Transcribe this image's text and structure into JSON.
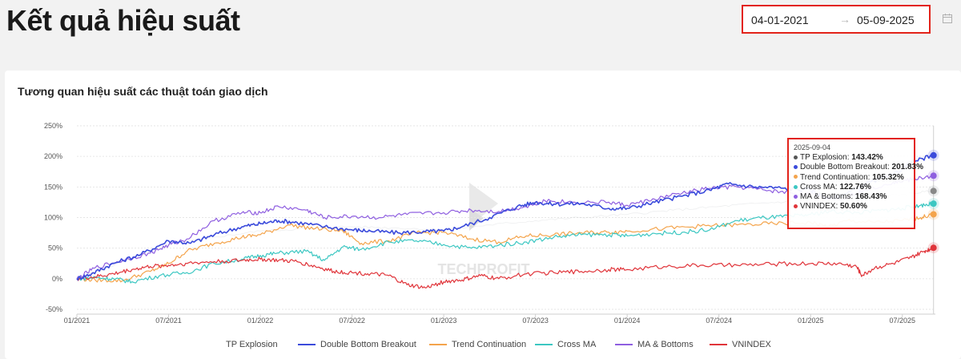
{
  "header": {
    "title": "Kết quả hiệu suất",
    "date_start": "04-01-2021",
    "date_separator": "→",
    "date_end": "05-09-2025"
  },
  "chart_data": {
    "type": "line",
    "title": "Tương quan hiệu suất các thuật toán giao dịch",
    "xlabel": "",
    "ylabel": "",
    "ylim": [
      -50,
      250
    ],
    "y_ticks": [
      "250%",
      "200%",
      "150%",
      "100%",
      "50%",
      "0%",
      "-50%"
    ],
    "y_tick_values": [
      250,
      200,
      150,
      100,
      50,
      0,
      -50
    ],
    "x_ticks": [
      "01/2021",
      "07/2021",
      "01/2022",
      "07/2022",
      "01/2023",
      "07/2023",
      "01/2024",
      "07/2024",
      "01/2025",
      "07/2025"
    ],
    "x_tick_values": [
      2021.0,
      2021.5,
      2022.0,
      2022.5,
      2023.0,
      2023.5,
      2024.0,
      2024.5,
      2025.0,
      2025.5
    ],
    "xlim": [
      2021.0,
      2025.68
    ],
    "grid": "horizontal",
    "legend_position": "bottom",
    "watermark": "TECHPROFIT",
    "series": [
      {
        "name": "TP Explosion",
        "color": "#9aa0a6",
        "x": [
          2021.0,
          2021.25,
          2021.5,
          2021.75,
          2022.0,
          2022.25,
          2022.5,
          2022.75,
          2023.0,
          2023.25,
          2023.5,
          2023.75,
          2024.0,
          2024.25,
          2024.5,
          2024.75,
          2025.0,
          2025.25,
          2025.5,
          2025.67
        ],
        "values": [
          0,
          28,
          55,
          68,
          78,
          82,
          85,
          83,
          80,
          88,
          95,
          100,
          105,
          112,
          118,
          124,
          128,
          132,
          138,
          143.42
        ]
      },
      {
        "name": "Double Bottom Breakout",
        "color": "#3b4bdb",
        "x": [
          2021.0,
          2021.08,
          2021.2,
          2021.35,
          2021.5,
          2021.62,
          2021.75,
          2021.9,
          2022.0,
          2022.1,
          2022.2,
          2022.35,
          2022.5,
          2022.6,
          2022.75,
          2022.9,
          2023.0,
          2023.1,
          2023.25,
          2023.4,
          2023.5,
          2023.6,
          2023.75,
          2023.9,
          2024.0,
          2024.15,
          2024.3,
          2024.45,
          2024.55,
          2024.7,
          2024.85,
          2025.0,
          2025.1,
          2025.2,
          2025.3,
          2025.45,
          2025.55,
          2025.67
        ],
        "values": [
          0,
          8,
          25,
          40,
          62,
          58,
          72,
          85,
          90,
          95,
          92,
          85,
          80,
          78,
          75,
          77,
          78,
          85,
          100,
          118,
          125,
          122,
          123,
          115,
          115,
          125,
          135,
          145,
          155,
          150,
          148,
          145,
          130,
          140,
          155,
          170,
          190,
          201.83
        ]
      },
      {
        "name": "Trend Continuation",
        "color": "#f4a44c",
        "x": [
          2021.0,
          2021.1,
          2021.25,
          2021.4,
          2021.5,
          2021.6,
          2021.75,
          2021.9,
          2022.0,
          2022.15,
          2022.3,
          2022.45,
          2022.55,
          2022.7,
          2022.85,
          2023.0,
          2023.15,
          2023.3,
          2023.45,
          2023.6,
          2023.75,
          2023.9,
          2024.0,
          2024.2,
          2024.4,
          2024.6,
          2024.8,
          2025.0,
          2025.1,
          2025.2,
          2025.35,
          2025.5,
          2025.6,
          2025.67
        ],
        "values": [
          0,
          -2,
          -3,
          12,
          25,
          45,
          58,
          68,
          72,
          88,
          82,
          78,
          58,
          62,
          75,
          76,
          65,
          60,
          70,
          72,
          75,
          76,
          78,
          82,
          86,
          88,
          90,
          92,
          85,
          95,
          92,
          95,
          100,
          105.32
        ]
      },
      {
        "name": "Cross MA",
        "color": "#3cc7c2",
        "x": [
          2021.0,
          2021.1,
          2021.2,
          2021.3,
          2021.45,
          2021.6,
          2021.75,
          2021.9,
          2022.0,
          2022.1,
          2022.25,
          2022.35,
          2022.45,
          2022.55,
          2022.7,
          2022.85,
          2023.0,
          2023.15,
          2023.3,
          2023.45,
          2023.6,
          2023.75,
          2023.9,
          2024.0,
          2024.15,
          2024.3,
          2024.45,
          2024.6,
          2024.75,
          2024.9,
          2025.0,
          2025.1,
          2025.25,
          2025.4,
          2025.5,
          2025.6,
          2025.67
        ],
        "values": [
          0,
          2,
          0,
          -5,
          5,
          10,
          25,
          32,
          38,
          42,
          45,
          30,
          52,
          48,
          60,
          62,
          56,
          50,
          55,
          60,
          68,
          72,
          72,
          70,
          74,
          76,
          80,
          95,
          100,
          102,
          105,
          110,
          108,
          112,
          115,
          120,
          122.76
        ]
      },
      {
        "name": "MA & Bottoms",
        "color": "#8f5fe0",
        "x": [
          2021.0,
          2021.1,
          2021.25,
          2021.4,
          2021.5,
          2021.6,
          2021.75,
          2021.9,
          2022.0,
          2022.1,
          2022.25,
          2022.35,
          2022.5,
          2022.65,
          2022.8,
          2023.0,
          2023.15,
          2023.3,
          2023.45,
          2023.55,
          2023.7,
          2023.9,
          2024.0,
          2024.15,
          2024.3,
          2024.45,
          2024.6,
          2024.75,
          2024.9,
          2025.0,
          2025.15,
          2025.3,
          2025.45,
          2025.55,
          2025.67
        ],
        "values": [
          0,
          18,
          30,
          42,
          55,
          65,
          95,
          108,
          108,
          118,
          112,
          100,
          102,
          100,
          105,
          108,
          112,
          110,
          118,
          128,
          125,
          125,
          120,
          130,
          140,
          148,
          150,
          145,
          140,
          138,
          130,
          145,
          158,
          162,
          168.43
        ]
      },
      {
        "name": "VNINDEX",
        "color": "#e0343a",
        "x": [
          2021.0,
          2021.1,
          2021.2,
          2021.3,
          2021.4,
          2021.5,
          2021.6,
          2021.75,
          2021.9,
          2022.0,
          2022.1,
          2022.2,
          2022.3,
          2022.4,
          2022.5,
          2022.6,
          2022.7,
          2022.8,
          2022.9,
          2023.0,
          2023.1,
          2023.2,
          2023.3,
          2023.45,
          2023.6,
          2023.75,
          2023.9,
          2024.0,
          2024.2,
          2024.4,
          2024.6,
          2024.8,
          2025.0,
          2025.15,
          2025.25,
          2025.28,
          2025.35,
          2025.45,
          2025.55,
          2025.62,
          2025.67
        ],
        "values": [
          0,
          3,
          8,
          15,
          20,
          22,
          25,
          28,
          30,
          32,
          30,
          28,
          20,
          12,
          10,
          8,
          5,
          -10,
          -15,
          -5,
          -2,
          5,
          0,
          8,
          10,
          12,
          15,
          15,
          20,
          22,
          22,
          24,
          25,
          25,
          20,
          5,
          18,
          25,
          35,
          45,
          50.6
        ]
      }
    ],
    "tooltip": {
      "date": "2025-09-04",
      "rows": [
        {
          "label": "TP Explosion: ",
          "value": "143.42%",
          "color": "#555555"
        },
        {
          "label": "Double Bottom Breakout: ",
          "value": "201.83%",
          "color": "#3b4bdb"
        },
        {
          "label": "Trend Continuation: ",
          "value": "105.32%",
          "color": "#f4a44c"
        },
        {
          "label": "Cross MA: ",
          "value": "122.76%",
          "color": "#3cc7c2"
        },
        {
          "label": "MA & Bottoms: ",
          "value": "168.43%",
          "color": "#8f5fe0"
        },
        {
          "label": "VNINDEX: ",
          "value": "50.60%",
          "color": "#e0343a"
        }
      ]
    }
  }
}
